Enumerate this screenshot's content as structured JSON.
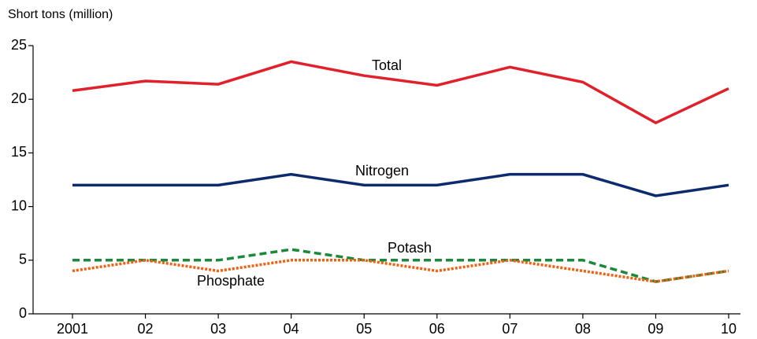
{
  "chart_data": {
    "type": "line",
    "y_label": "Short tons (million)",
    "categories": [
      "2001",
      "02",
      "03",
      "04",
      "05",
      "06",
      "07",
      "08",
      "09",
      "10"
    ],
    "series": [
      {
        "name": "Total",
        "color": "#e0202a",
        "dash": "solid",
        "values": [
          20.8,
          21.7,
          21.4,
          23.5,
          22.2,
          21.3,
          23.0,
          21.6,
          17.8,
          21.0
        ]
      },
      {
        "name": "Nitrogen",
        "color": "#0d2a6e",
        "dash": "solid",
        "values": [
          12,
          12,
          12,
          13,
          12,
          12,
          13,
          13,
          11,
          12
        ]
      },
      {
        "name": "Potash",
        "color": "#1a8a3a",
        "dash": "dashed",
        "values": [
          5,
          5,
          5,
          6,
          5,
          5,
          5,
          5,
          3,
          4
        ]
      },
      {
        "name": "Phosphate",
        "color": "#f06010",
        "dash": "dotted",
        "values": [
          4,
          5,
          4,
          5,
          5,
          4,
          5,
          4,
          3,
          4
        ]
      }
    ],
    "ylim": [
      0,
      25
    ],
    "yticks": [
      0,
      5,
      10,
      15,
      20,
      25
    ],
    "grid": false
  }
}
